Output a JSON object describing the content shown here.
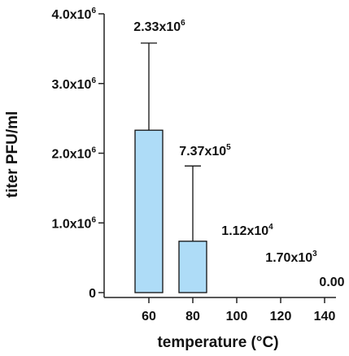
{
  "chart_data": {
    "type": "bar",
    "xlabel": "temperature (°C)",
    "ylabel": "titer PFU/ml",
    "ylim": [
      0,
      4000000
    ],
    "y_ticks": [
      {
        "value": 0,
        "mantissa": "0",
        "exp": ""
      },
      {
        "value": 1000000,
        "mantissa": "1.0x10",
        "exp": "6"
      },
      {
        "value": 2000000,
        "mantissa": "2.0x10",
        "exp": "6"
      },
      {
        "value": 3000000,
        "mantissa": "3.0x10",
        "exp": "6"
      },
      {
        "value": 4000000,
        "mantissa": "4.0x10",
        "exp": "6"
      }
    ],
    "categories": [
      "60",
      "80",
      "100",
      "120",
      "140"
    ],
    "values": [
      2330000,
      737000,
      11200,
      1700,
      0
    ],
    "errors": [
      1250000,
      1080000,
      0,
      0,
      0
    ],
    "data_labels": [
      {
        "mantissa": "2.33x10",
        "exp": "6"
      },
      {
        "mantissa": "7.37x10",
        "exp": "5"
      },
      {
        "mantissa": "1.12x10",
        "exp": "4"
      },
      {
        "mantissa": "1.70x10",
        "exp": "3"
      },
      {
        "mantissa": "0.00",
        "exp": ""
      }
    ],
    "bar_color": "#aedcf7",
    "grid": false
  }
}
